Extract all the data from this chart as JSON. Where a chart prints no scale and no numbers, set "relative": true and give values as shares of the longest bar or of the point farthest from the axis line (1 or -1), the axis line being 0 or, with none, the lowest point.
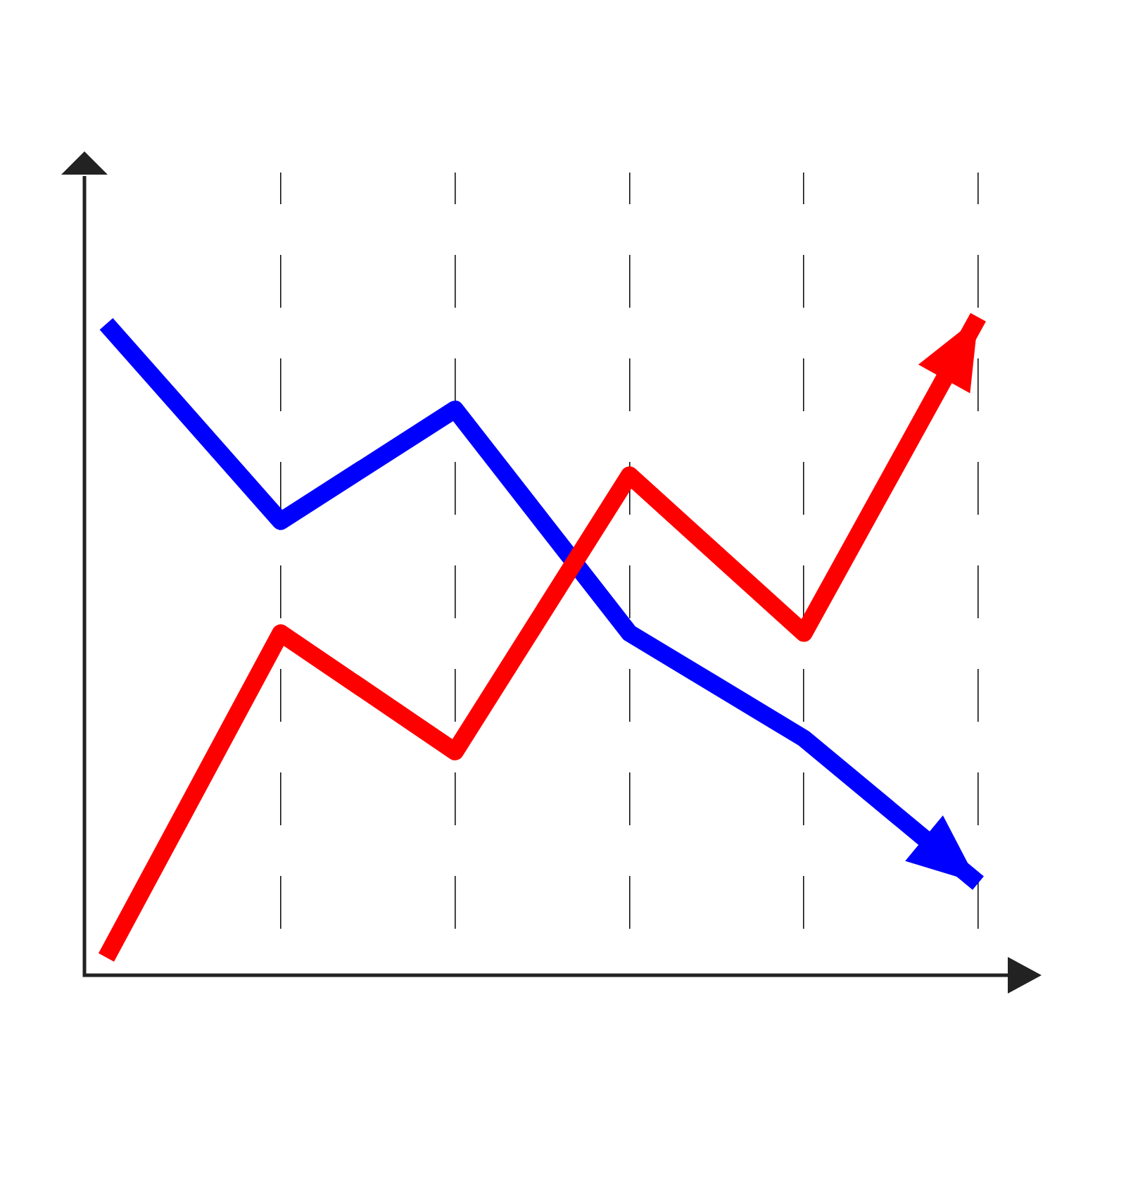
{
  "chart_data": {
    "type": "line",
    "relative": true,
    "categories": [
      null,
      null,
      null,
      null,
      null,
      null
    ],
    "grid": "x",
    "legend": false,
    "marker": "none",
    "line_style": "solid",
    "series": [
      {
        "color": "#ff0000",
        "values": [
          0.027,
          0.52,
          0.34,
          0.76,
          0.52,
          1
        ]
      },
      {
        "color": "#0000ff",
        "values": [
          0.99,
          0.69,
          0.86,
          0.52,
          0.36,
          0.14
        ]
      }
    ]
  }
}
